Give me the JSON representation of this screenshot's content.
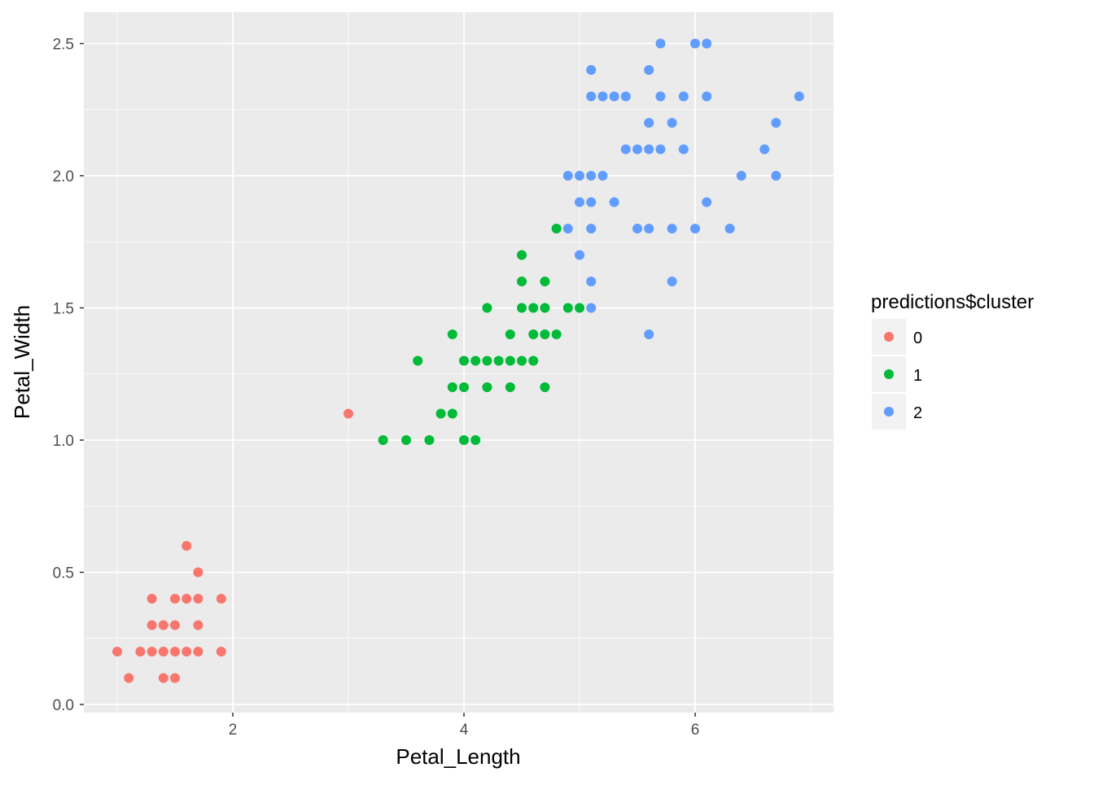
{
  "chart_data": {
    "type": "scatter",
    "title": "",
    "xlabel": "Petal_Length",
    "ylabel": "Petal_Width",
    "xlim": [
      0.7,
      7.2
    ],
    "ylim": [
      -0.03,
      2.62
    ],
    "x_ticks": [
      2,
      4,
      6
    ],
    "x_tick_labels": [
      "2",
      "4",
      "6"
    ],
    "y_ticks": [
      0.0,
      0.5,
      1.0,
      1.5,
      2.0,
      2.5
    ],
    "y_tick_labels": [
      "0.0",
      "0.5",
      "1.0",
      "1.5",
      "2.0",
      "2.5"
    ],
    "grid": true,
    "legend": {
      "title": "predictions$cluster",
      "placement": "right",
      "entries": [
        "0",
        "1",
        "2"
      ]
    },
    "colors": {
      "0": "#F8766D",
      "1": "#00BA38",
      "2": "#619CFF",
      "panel": "#EBEBEB",
      "grid": "#FFFFFF"
    },
    "series": [
      {
        "name": "0",
        "points": [
          [
            1.0,
            0.2
          ],
          [
            1.1,
            0.1
          ],
          [
            1.2,
            0.2
          ],
          [
            1.3,
            0.2
          ],
          [
            1.3,
            0.3
          ],
          [
            1.3,
            0.4
          ],
          [
            1.4,
            0.1
          ],
          [
            1.4,
            0.2
          ],
          [
            1.4,
            0.3
          ],
          [
            1.5,
            0.1
          ],
          [
            1.5,
            0.2
          ],
          [
            1.5,
            0.3
          ],
          [
            1.5,
            0.4
          ],
          [
            1.6,
            0.2
          ],
          [
            1.6,
            0.4
          ],
          [
            1.6,
            0.6
          ],
          [
            1.7,
            0.2
          ],
          [
            1.7,
            0.3
          ],
          [
            1.7,
            0.4
          ],
          [
            1.7,
            0.5
          ],
          [
            1.9,
            0.2
          ],
          [
            1.9,
            0.4
          ],
          [
            3.0,
            1.1
          ]
        ]
      },
      {
        "name": "1",
        "points": [
          [
            3.3,
            1.0
          ],
          [
            3.5,
            1.0
          ],
          [
            3.7,
            1.0
          ],
          [
            3.6,
            1.3
          ],
          [
            3.8,
            1.1
          ],
          [
            3.9,
            1.1
          ],
          [
            3.9,
            1.2
          ],
          [
            3.9,
            1.4
          ],
          [
            4.0,
            1.0
          ],
          [
            4.0,
            1.2
          ],
          [
            4.0,
            1.3
          ],
          [
            4.1,
            1.0
          ],
          [
            4.1,
            1.3
          ],
          [
            4.2,
            1.2
          ],
          [
            4.2,
            1.3
          ],
          [
            4.2,
            1.5
          ],
          [
            4.3,
            1.3
          ],
          [
            4.4,
            1.2
          ],
          [
            4.4,
            1.3
          ],
          [
            4.4,
            1.4
          ],
          [
            4.5,
            1.3
          ],
          [
            4.5,
            1.5
          ],
          [
            4.5,
            1.6
          ],
          [
            4.5,
            1.7
          ],
          [
            4.6,
            1.3
          ],
          [
            4.6,
            1.4
          ],
          [
            4.6,
            1.5
          ],
          [
            4.7,
            1.2
          ],
          [
            4.7,
            1.4
          ],
          [
            4.7,
            1.5
          ],
          [
            4.7,
            1.6
          ],
          [
            4.8,
            1.4
          ],
          [
            4.8,
            1.8
          ],
          [
            4.9,
            1.5
          ],
          [
            5.0,
            1.5
          ]
        ]
      },
      {
        "name": "2",
        "points": [
          [
            4.9,
            1.8
          ],
          [
            4.9,
            2.0
          ],
          [
            5.0,
            1.7
          ],
          [
            5.0,
            1.9
          ],
          [
            5.0,
            2.0
          ],
          [
            5.1,
            1.5
          ],
          [
            5.1,
            1.6
          ],
          [
            5.1,
            1.8
          ],
          [
            5.1,
            1.9
          ],
          [
            5.1,
            2.0
          ],
          [
            5.1,
            2.3
          ],
          [
            5.1,
            2.4
          ],
          [
            5.2,
            2.0
          ],
          [
            5.2,
            2.3
          ],
          [
            5.3,
            1.9
          ],
          [
            5.3,
            2.3
          ],
          [
            5.4,
            2.1
          ],
          [
            5.4,
            2.3
          ],
          [
            5.5,
            1.8
          ],
          [
            5.5,
            2.1
          ],
          [
            5.6,
            1.4
          ],
          [
            5.6,
            1.8
          ],
          [
            5.6,
            2.1
          ],
          [
            5.6,
            2.2
          ],
          [
            5.6,
            2.4
          ],
          [
            5.7,
            2.1
          ],
          [
            5.7,
            2.3
          ],
          [
            5.7,
            2.5
          ],
          [
            5.8,
            1.6
          ],
          [
            5.8,
            1.8
          ],
          [
            5.8,
            2.2
          ],
          [
            5.9,
            2.1
          ],
          [
            5.9,
            2.3
          ],
          [
            6.0,
            1.8
          ],
          [
            6.0,
            2.5
          ],
          [
            6.1,
            1.9
          ],
          [
            6.1,
            2.3
          ],
          [
            6.1,
            2.5
          ],
          [
            6.3,
            1.8
          ],
          [
            6.4,
            2.0
          ],
          [
            6.6,
            2.1
          ],
          [
            6.7,
            2.0
          ],
          [
            6.7,
            2.2
          ],
          [
            6.9,
            2.3
          ]
        ]
      }
    ]
  }
}
